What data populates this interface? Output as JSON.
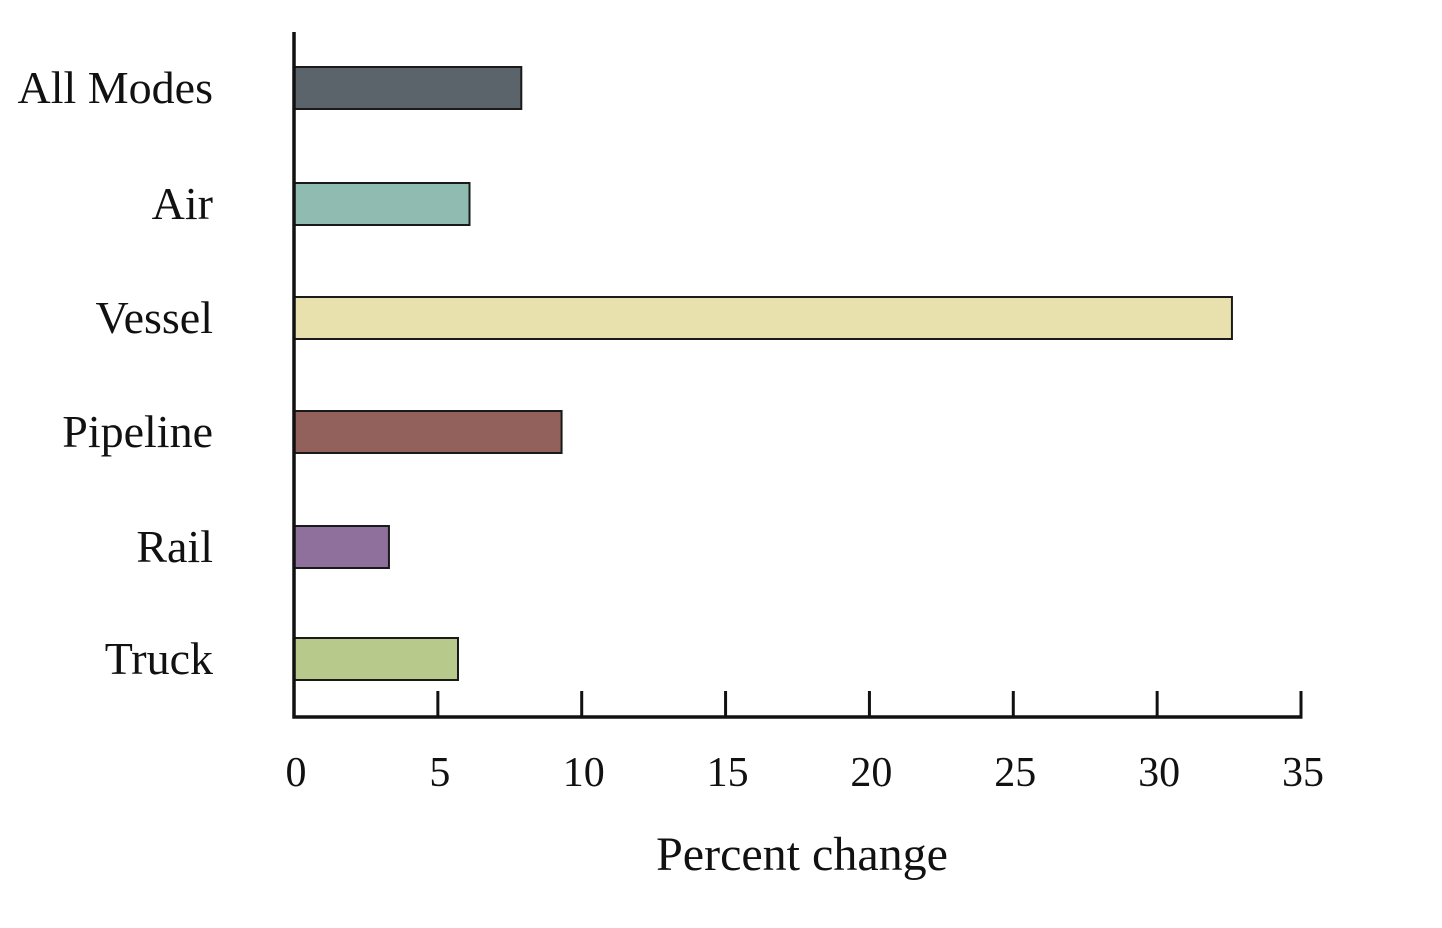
{
  "chart_data": {
    "type": "bar",
    "orientation": "horizontal",
    "title": "",
    "xlabel": "Percent change",
    "ylabel": "",
    "categories": [
      "All Modes",
      "Air",
      "Vessel",
      "Pipeline",
      "Rail",
      "Truck"
    ],
    "values": [
      7.9,
      6.1,
      32.6,
      9.3,
      3.3,
      5.7
    ],
    "colors": [
      "#5c646b",
      "#8fbbb0",
      "#e8e1ad",
      "#92615b",
      "#8f6f9b",
      "#b8c98c"
    ],
    "xlim": [
      0,
      35
    ],
    "xticks": [
      0,
      5,
      10,
      15,
      20,
      25,
      30,
      35
    ],
    "xtick_labels": [
      "0",
      "5",
      "10",
      "15",
      "20",
      "25",
      "30",
      "35"
    ],
    "grid": false,
    "legend": "none"
  }
}
